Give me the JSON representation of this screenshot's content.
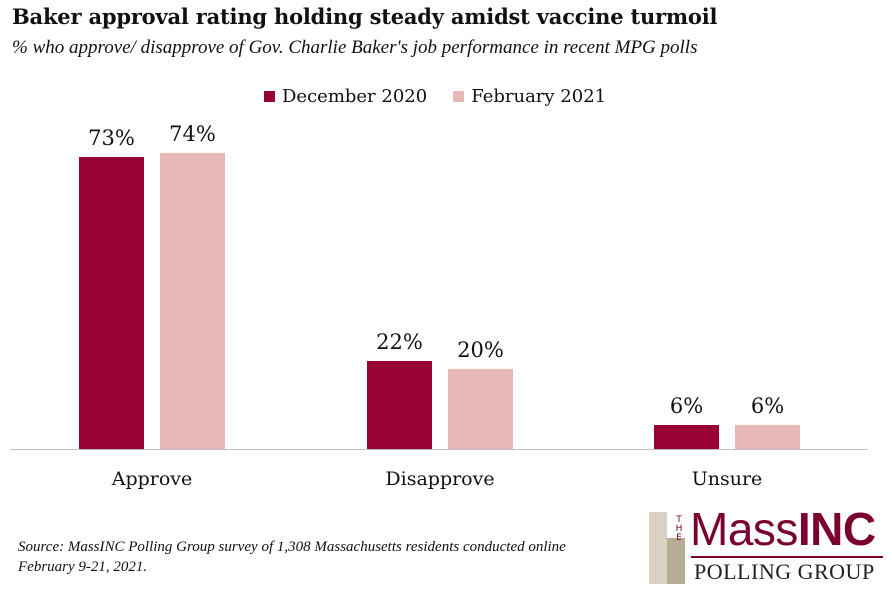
{
  "chart_data": {
    "type": "bar",
    "title": "Baker approval rating holding steady amidst vaccine turmoil",
    "subtitle": "% who approve/ disapprove of Gov. Charlie Baker's job performance in recent MPG polls",
    "categories": [
      "Approve",
      "Disapprove",
      "Unsure"
    ],
    "series": [
      {
        "name": "December 2020",
        "values": [
          73,
          22,
          6
        ],
        "labels": [
          "73%",
          "22%",
          "6%"
        ],
        "color": "#990033"
      },
      {
        "name": "February 2021",
        "values": [
          74,
          20,
          6
        ],
        "labels": [
          "74%",
          "20%",
          "6%"
        ],
        "color": "#e6b8b7"
      }
    ],
    "ylim": [
      0,
      80
    ],
    "grid": false,
    "legend_position": "top-center",
    "source": "Source: MassINC Polling Group survey of 1,308 Massachusetts residents conducted online February 9-21, 2021."
  },
  "logo": {
    "small_text": "THE",
    "main_text_a": "Mass",
    "main_text_b": "INC",
    "sub_text": "POLLING GROUP",
    "colors": {
      "maroon": "#7a0030",
      "tan_light": "#d9d2c3",
      "tan_dark": "#b8ad97"
    }
  }
}
